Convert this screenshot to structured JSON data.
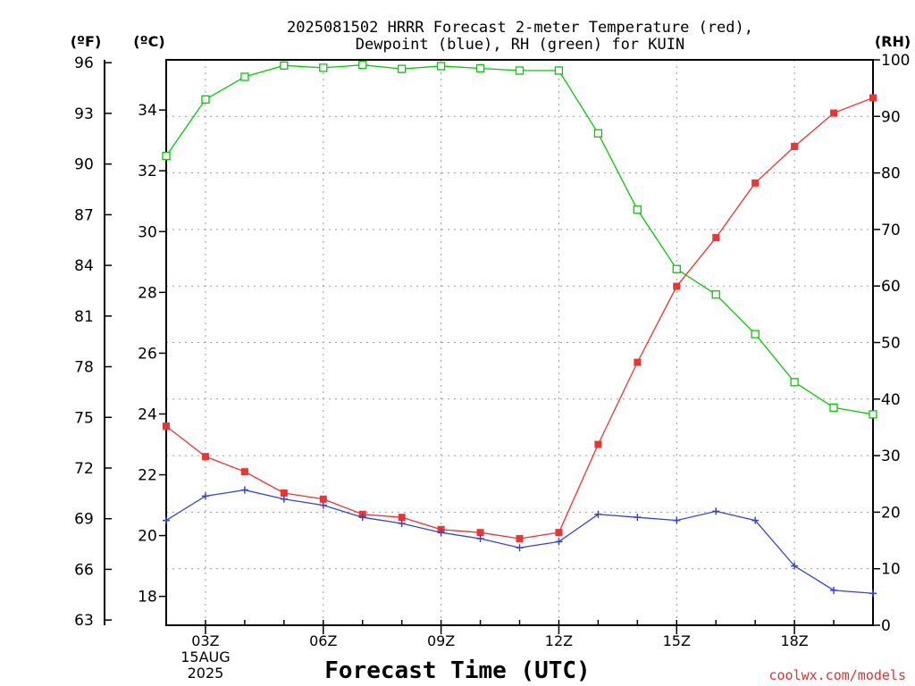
{
  "chart_data": {
    "type": "line",
    "title": [
      "2025081502 HRRR Forecast 2-meter Temperature (red),",
      "Dewpoint (blue), RH (green) for KUIN"
    ],
    "xlabel": "Forecast Time (UTC)",
    "credit": "coolwx.com/models",
    "units": {
      "fahrenheit": "(ºF)",
      "celsius": "(ºC)",
      "rh": "(RH)"
    },
    "x_hours": [
      2,
      3,
      4,
      5,
      6,
      7,
      8,
      9,
      10,
      11,
      12,
      13,
      14,
      15,
      16,
      17,
      18,
      19,
      20
    ],
    "x_ticks": [
      {
        "hour": 3,
        "label": "03Z",
        "sub": [
          "15AUG",
          "2025"
        ]
      },
      {
        "hour": 6,
        "label": "06Z"
      },
      {
        "hour": 9,
        "label": "09Z"
      },
      {
        "hour": 12,
        "label": "12Z"
      },
      {
        "hour": 15,
        "label": "15Z"
      },
      {
        "hour": 18,
        "label": "18Z"
      }
    ],
    "xlim": [
      2,
      20
    ],
    "y_celsius": {
      "lim": [
        17.05,
        35.65
      ],
      "ticks": [
        18,
        20,
        22,
        24,
        26,
        28,
        30,
        32,
        34
      ]
    },
    "y_fahrenheit": {
      "lim": [
        62.69,
        96.17
      ],
      "ticks": [
        63,
        66,
        69,
        72,
        75,
        78,
        81,
        84,
        87,
        90,
        93,
        96
      ]
    },
    "y_rh": {
      "lim": [
        0,
        100
      ],
      "ticks": [
        0,
        10,
        20,
        30,
        40,
        50,
        60,
        70,
        80,
        90,
        100
      ]
    },
    "series": [
      {
        "name": "Temperature",
        "axis": "celsius",
        "color": "#ee3333",
        "marker": "filled-square",
        "values": [
          23.6,
          22.6,
          22.1,
          21.4,
          21.2,
          20.7,
          20.6,
          20.2,
          20.1,
          19.9,
          20.1,
          23.0,
          25.7,
          28.2,
          29.8,
          31.6,
          32.8,
          33.9,
          34.4
        ]
      },
      {
        "name": "Dewpoint",
        "axis": "celsius",
        "color": "#3344dd",
        "marker": "plus",
        "values": [
          20.5,
          21.3,
          21.5,
          21.2,
          21.0,
          20.6,
          20.4,
          20.1,
          19.9,
          19.6,
          19.8,
          20.7,
          20.6,
          20.5,
          20.8,
          20.5,
          19.0,
          18.2,
          18.1
        ]
      },
      {
        "name": "RH",
        "axis": "rh",
        "color": "#00cc00",
        "marker": "open-square",
        "values": [
          83,
          93,
          97,
          99,
          98.6,
          99.1,
          98.4,
          98.9,
          98.5,
          98.1,
          98.1,
          87,
          73.5,
          63,
          58.5,
          51.5,
          43,
          38.5,
          37.3
        ]
      }
    ]
  }
}
